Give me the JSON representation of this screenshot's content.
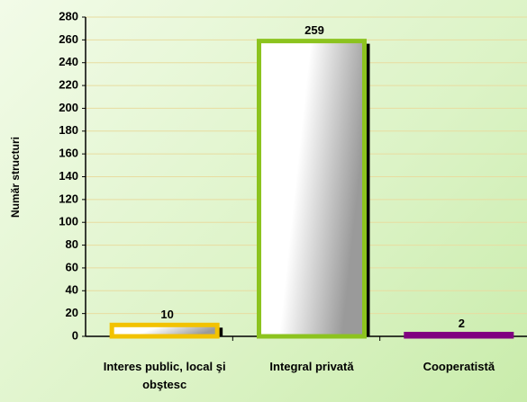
{
  "chart_data": {
    "type": "bar",
    "y_label": "Număr structuri",
    "categories": [
      "Interes public, local şi obştesc",
      "Integral privată",
      "Cooperatistă"
    ],
    "values": [
      10,
      259,
      2
    ],
    "colors": [
      "#f2c200",
      "#8cc31e",
      "#800080"
    ],
    "ylim": [
      0,
      280
    ],
    "yticks": [
      0,
      20,
      40,
      60,
      80,
      100,
      120,
      140,
      160,
      180,
      200,
      220,
      240,
      260,
      280
    ],
    "grid": true
  }
}
